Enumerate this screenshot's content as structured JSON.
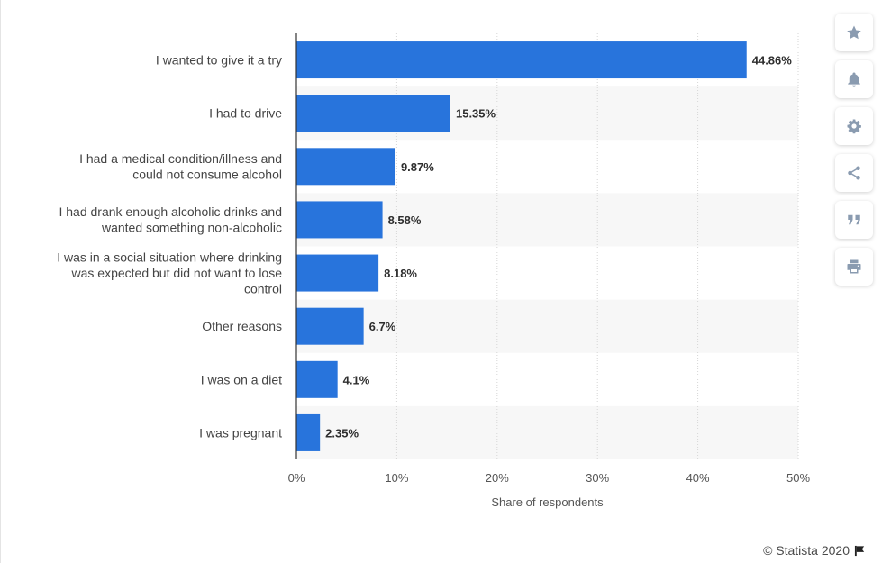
{
  "chart_data": {
    "type": "bar",
    "orientation": "horizontal",
    "categories": [
      [
        "I wanted to give it a try"
      ],
      [
        "I had to drive"
      ],
      [
        "I had a medical condition/illness and",
        "could not consume alcohol"
      ],
      [
        "I had drank enough alcoholic drinks and",
        "wanted something non-alcoholic"
      ],
      [
        "I was in a social situation where drinking",
        "was expected but did not want to lose",
        "control"
      ],
      [
        "Other reasons"
      ],
      [
        "I was on a diet"
      ],
      [
        "I was pregnant"
      ]
    ],
    "values": [
      44.86,
      15.35,
      9.87,
      8.58,
      8.18,
      6.7,
      4.1,
      2.35
    ],
    "value_labels": [
      "44.86%",
      "15.35%",
      "9.87%",
      "8.58%",
      "8.18%",
      "6.7%",
      "4.1%",
      "2.35%"
    ],
    "xlim": [
      0,
      50
    ],
    "ticks": [
      0,
      10,
      20,
      30,
      40,
      50
    ],
    "tick_labels": [
      "0%",
      "10%",
      "20%",
      "30%",
      "40%",
      "50%"
    ],
    "xlabel": "Share of respondents",
    "ylabel": "",
    "title": "",
    "grid": true,
    "bar_color": "#2874dc",
    "band_color": "#f7f7f7"
  },
  "toolbar": {
    "icons": [
      "star-icon",
      "bell-icon",
      "gear-icon",
      "share-icon",
      "quote-icon",
      "print-icon"
    ]
  },
  "footer": {
    "credit": "© Statista 2020",
    "flag_icon": "flag-icon"
  }
}
